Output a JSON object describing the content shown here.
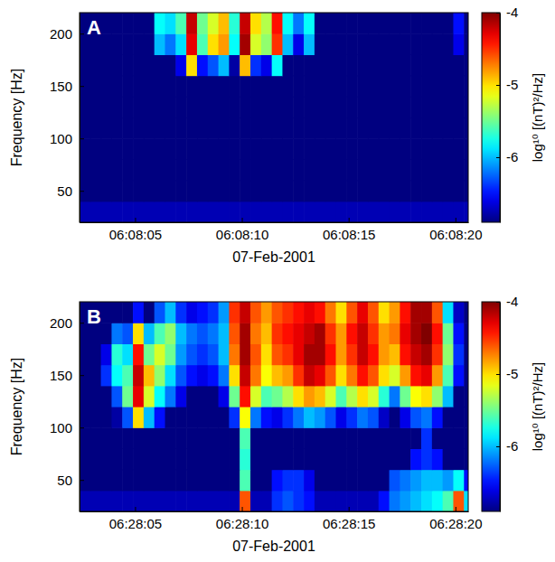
{
  "chart_data": [
    {
      "type": "heatmap",
      "title": "A",
      "x": [
        2.65,
        3.15,
        3.65,
        4.15,
        4.65,
        5.15,
        5.65,
        6.15,
        6.65,
        7.15,
        7.65,
        8.15,
        8.65,
        9.15,
        9.65,
        10.15,
        10.65,
        11.15,
        11.65,
        12.15,
        12.65,
        13.15,
        13.65,
        14.15,
        14.65,
        15.15,
        15.65,
        16.15,
        16.65,
        17.15,
        17.65,
        18.15,
        18.65,
        19.15,
        19.65,
        20.15,
        20.65
      ],
      "y": [
        30,
        50,
        70,
        90,
        110,
        130,
        150,
        170,
        190,
        210
      ],
      "z": [
        [
          -6.75,
          -6.75,
          -6.75,
          -6.75,
          -6.75,
          -6.75,
          -6.75,
          -6.75,
          -6.75,
          -6.75,
          -6.75,
          -6.75,
          -6.75,
          -6.75,
          -6.75,
          -6.75,
          -6.75,
          -6.75,
          -6.75,
          -6.75,
          -6.75,
          -6.75,
          -6.75,
          -6.75,
          -6.75,
          -6.75,
          -6.75,
          -6.75,
          -6.75,
          -6.75,
          -6.75,
          -6.75,
          -6.75,
          -6.75,
          -6.75,
          -6.75,
          -6.75
        ],
        [
          -6.9,
          -6.9,
          -6.9,
          -6.9,
          -6.9,
          -6.9,
          -6.9,
          -6.9,
          -6.9,
          -6.9,
          -6.9,
          -6.9,
          -6.9,
          -6.9,
          -6.9,
          -6.9,
          -6.9,
          -6.9,
          -6.9,
          -6.9,
          -6.9,
          -6.9,
          -6.9,
          -6.9,
          -6.9,
          -6.9,
          -6.9,
          -6.9,
          -6.9,
          -6.9,
          -6.9,
          -6.9,
          -6.9,
          -6.9,
          -6.9,
          -6.9,
          -6.9
        ],
        [
          -6.9,
          -6.9,
          -6.9,
          -6.9,
          -6.9,
          -6.9,
          -6.9,
          -6.9,
          -6.9,
          -6.9,
          -6.9,
          -6.9,
          -6.9,
          -6.9,
          -6.9,
          -6.9,
          -6.9,
          -6.9,
          -6.9,
          -6.9,
          -6.9,
          -6.9,
          -6.9,
          -6.9,
          -6.9,
          -6.9,
          -6.9,
          -6.9,
          -6.9,
          -6.9,
          -6.9,
          -6.9,
          -6.9,
          -6.9,
          -6.9,
          -6.9,
          -6.9
        ],
        [
          -6.9,
          -6.9,
          -6.9,
          -6.9,
          -6.9,
          -6.9,
          -6.9,
          -6.9,
          -6.9,
          -6.9,
          -6.9,
          -6.9,
          -6.9,
          -6.9,
          -6.9,
          -6.9,
          -6.9,
          -6.9,
          -6.9,
          -6.9,
          -6.9,
          -6.9,
          -6.9,
          -6.9,
          -6.9,
          -6.9,
          -6.9,
          -6.9,
          -6.9,
          -6.9,
          -6.9,
          -6.9,
          -6.9,
          -6.9,
          -6.9,
          -6.9,
          -6.9
        ],
        [
          -6.9,
          -6.9,
          -6.9,
          -6.9,
          -6.9,
          -6.9,
          -6.9,
          -6.9,
          -6.9,
          -6.9,
          -6.9,
          -6.9,
          -6.9,
          -6.9,
          -6.9,
          -6.9,
          -6.9,
          -6.9,
          -6.9,
          -6.9,
          -6.9,
          -6.9,
          -6.9,
          -6.9,
          -6.9,
          -6.9,
          -6.9,
          -6.9,
          -6.9,
          -6.9,
          -6.9,
          -6.9,
          -6.9,
          -6.9,
          -6.9,
          -6.9,
          -6.9
        ],
        [
          -6.9,
          -6.9,
          -6.9,
          -6.9,
          -6.9,
          -6.9,
          -6.9,
          -6.9,
          -6.9,
          -6.9,
          -6.9,
          -6.9,
          -6.9,
          -6.9,
          -6.9,
          -6.9,
          -6.9,
          -6.9,
          -6.9,
          -6.9,
          -6.9,
          -6.9,
          -6.9,
          -6.9,
          -6.9,
          -6.9,
          -6.9,
          -6.9,
          -6.9,
          -6.9,
          -6.9,
          -6.9,
          -6.9,
          -6.9,
          -6.9,
          -6.9,
          -6.9
        ],
        [
          -6.9,
          -6.9,
          -6.9,
          -6.9,
          -6.9,
          -6.9,
          -6.9,
          -6.9,
          -6.9,
          -6.9,
          -6.9,
          -6.9,
          -6.9,
          -6.9,
          -6.9,
          -6.9,
          -6.9,
          -6.9,
          -6.9,
          -6.9,
          -6.9,
          -6.9,
          -6.9,
          -6.9,
          -6.9,
          -6.9,
          -6.9,
          -6.9,
          -6.9,
          -6.9,
          -6.9,
          -6.9,
          -6.9,
          -6.9,
          -6.9,
          -6.9,
          -6.9
        ],
        [
          -6.9,
          -6.9,
          -6.9,
          -6.9,
          -6.9,
          -6.9,
          -6.9,
          -6.9,
          -6.9,
          -6.6,
          -5.0,
          -6.5,
          -6.3,
          -6.0,
          -6.8,
          -4.9,
          -6.4,
          -6.6,
          -5.8,
          -6.9,
          -6.9,
          -6.9,
          -6.9,
          -6.9,
          -6.9,
          -6.9,
          -6.9,
          -6.9,
          -6.9,
          -6.9,
          -6.9,
          -6.9,
          -6.9,
          -6.9,
          -6.9,
          -6.9,
          -6.9
        ],
        [
          -6.9,
          -6.9,
          -6.9,
          -6.9,
          -6.9,
          -6.9,
          -6.9,
          -6.0,
          -6.2,
          -5.9,
          -4.3,
          -5.6,
          -5.0,
          -4.8,
          -5.8,
          -4.1,
          -5.2,
          -5.4,
          -4.5,
          -6.0,
          -6.6,
          -6.0,
          -6.9,
          -6.9,
          -6.9,
          -6.9,
          -6.9,
          -6.9,
          -6.9,
          -6.9,
          -6.9,
          -6.9,
          -6.9,
          -6.9,
          -6.9,
          -6.6,
          -6.9
        ],
        [
          -6.9,
          -6.9,
          -6.9,
          -6.9,
          -6.9,
          -6.9,
          -6.9,
          -5.8,
          -5.9,
          -5.6,
          -4.2,
          -5.5,
          -5.2,
          -4.9,
          -5.7,
          -4.2,
          -5.0,
          -5.3,
          -4.4,
          -5.8,
          -6.2,
          -5.8,
          -6.9,
          -6.9,
          -6.9,
          -6.9,
          -6.9,
          -6.9,
          -6.9,
          -6.9,
          -6.9,
          -6.9,
          -6.9,
          -6.9,
          -6.9,
          -6.5,
          -6.9
        ]
      ],
      "xlim": [
        2.4,
        20.6
      ],
      "xticks": [
        {
          "value": 5,
          "label": "06:08:05"
        },
        {
          "value": 10,
          "label": "06:08:10"
        },
        {
          "value": 15,
          "label": "06:08:15"
        },
        {
          "value": 20,
          "label": "06:08:20"
        }
      ],
      "xlabel": "07-Feb-2001",
      "ylabel": "Frequency [Hz]",
      "ylim": [
        20,
        220
      ],
      "yticks": [
        50,
        100,
        150,
        200
      ],
      "colorbar": {
        "label": "log¹⁰ [(nT)²/Hz]",
        "range": [
          -6.9,
          -4
        ],
        "ticks": [
          -4,
          -5,
          -6
        ]
      }
    },
    {
      "type": "heatmap",
      "title": "B",
      "x": [
        2.65,
        3.15,
        3.65,
        4.15,
        4.65,
        5.15,
        5.65,
        6.15,
        6.65,
        7.15,
        7.65,
        8.15,
        8.65,
        9.15,
        9.65,
        10.15,
        10.65,
        11.15,
        11.65,
        12.15,
        12.65,
        13.15,
        13.65,
        14.15,
        14.65,
        15.15,
        15.65,
        16.15,
        16.65,
        17.15,
        17.65,
        18.15,
        18.65,
        19.15,
        19.65,
        20.15,
        20.65
      ],
      "y": [
        30,
        50,
        70,
        90,
        110,
        130,
        150,
        170,
        190,
        210
      ],
      "z": [
        [
          -6.75,
          -6.75,
          -6.75,
          -6.75,
          -6.75,
          -6.75,
          -6.75,
          -6.75,
          -6.75,
          -6.75,
          -6.75,
          -6.75,
          -6.75,
          -6.75,
          -6.75,
          -4.6,
          -6.75,
          -6.75,
          -6.4,
          -6.3,
          -6.4,
          -6.5,
          -6.75,
          -6.75,
          -6.75,
          -6.75,
          -6.75,
          -6.75,
          -6.5,
          -6.2,
          -6.1,
          -6.0,
          -5.9,
          -5.8,
          -5.6,
          -4.6,
          -5.9
        ],
        [
          -6.9,
          -6.9,
          -6.9,
          -6.9,
          -6.9,
          -6.9,
          -6.9,
          -6.9,
          -6.9,
          -6.9,
          -6.9,
          -6.9,
          -6.9,
          -6.9,
          -6.9,
          -5.6,
          -6.9,
          -6.9,
          -6.5,
          -6.4,
          -6.4,
          -6.6,
          -6.9,
          -6.9,
          -6.9,
          -6.9,
          -6.9,
          -6.9,
          -6.9,
          -6.3,
          -6.2,
          -6.1,
          -6.0,
          -6.0,
          -6.1,
          -5.8,
          -6.5
        ],
        [
          -6.9,
          -6.9,
          -6.9,
          -6.9,
          -6.9,
          -6.9,
          -6.9,
          -6.9,
          -6.9,
          -6.9,
          -6.9,
          -6.9,
          -6.9,
          -6.9,
          -6.9,
          -5.7,
          -6.9,
          -6.9,
          -6.9,
          -6.9,
          -6.9,
          -6.9,
          -6.9,
          -6.9,
          -6.9,
          -6.9,
          -6.9,
          -6.9,
          -6.9,
          -6.9,
          -6.9,
          -6.5,
          -6.4,
          -6.5,
          -6.9,
          -6.9,
          -6.9
        ],
        [
          -6.9,
          -6.9,
          -6.9,
          -6.9,
          -6.9,
          -6.9,
          -6.9,
          -6.9,
          -6.9,
          -6.9,
          -6.9,
          -6.9,
          -6.9,
          -6.9,
          -6.9,
          -5.6,
          -6.9,
          -6.9,
          -6.9,
          -6.9,
          -6.9,
          -6.9,
          -6.9,
          -6.9,
          -6.9,
          -6.9,
          -6.9,
          -6.9,
          -6.9,
          -6.9,
          -6.9,
          -6.9,
          -6.4,
          -6.9,
          -6.9,
          -6.9,
          -6.9
        ],
        [
          -6.9,
          -6.9,
          -6.9,
          -6.8,
          -6.3,
          -5.0,
          -6.0,
          -6.5,
          -6.9,
          -6.9,
          -6.9,
          -6.9,
          -6.9,
          -6.9,
          -6.4,
          -5.1,
          -6.2,
          -6.5,
          -6.6,
          -6.4,
          -6.2,
          -6.0,
          -6.1,
          -6.3,
          -6.6,
          -6.4,
          -6.2,
          -6.3,
          -6.7,
          -6.9,
          -6.6,
          -6.3,
          -6.2,
          -6.5,
          -6.9,
          -6.9,
          -6.9
        ],
        [
          -6.9,
          -6.9,
          -6.9,
          -6.3,
          -5.5,
          -4.3,
          -5.2,
          -5.8,
          -6.2,
          -6.6,
          -6.9,
          -6.9,
          -6.9,
          -6.6,
          -5.5,
          -4.4,
          -5.2,
          -5.6,
          -5.5,
          -5.3,
          -5.0,
          -4.8,
          -4.9,
          -5.2,
          -5.6,
          -5.3,
          -5.0,
          -5.2,
          -5.7,
          -6.2,
          -5.5,
          -5.1,
          -5.0,
          -5.4,
          -6.0,
          -6.9,
          -6.9
        ],
        [
          -6.9,
          -6.9,
          -6.4,
          -5.8,
          -5.6,
          -4.2,
          -4.9,
          -5.4,
          -5.9,
          -6.3,
          -6.5,
          -6.6,
          -6.5,
          -6.2,
          -5.0,
          -4.2,
          -4.7,
          -5.1,
          -4.9,
          -4.8,
          -4.5,
          -4.2,
          -4.3,
          -4.6,
          -5.0,
          -4.7,
          -4.4,
          -4.6,
          -5.0,
          -5.2,
          -4.8,
          -4.4,
          -4.3,
          -4.8,
          -5.6,
          -6.5,
          -6.9
        ],
        [
          -6.9,
          -6.9,
          -6.6,
          -5.7,
          -5.9,
          -4.4,
          -5.5,
          -5.2,
          -5.5,
          -6.1,
          -6.3,
          -6.4,
          -6.3,
          -6.0,
          -4.7,
          -4.1,
          -4.6,
          -5.0,
          -4.6,
          -4.5,
          -4.3,
          -4.1,
          -4.1,
          -4.4,
          -4.8,
          -4.5,
          -4.2,
          -4.4,
          -4.8,
          -4.9,
          -4.4,
          -4.2,
          -4.1,
          -4.5,
          -5.4,
          -6.4,
          -6.9
        ],
        [
          -6.9,
          -6.9,
          -6.9,
          -6.2,
          -6.3,
          -5.0,
          -6.0,
          -5.6,
          -5.4,
          -6.0,
          -6.2,
          -6.3,
          -6.2,
          -6.0,
          -4.6,
          -4.1,
          -4.7,
          -4.9,
          -4.5,
          -4.4,
          -4.3,
          -4.2,
          -4.1,
          -4.5,
          -4.8,
          -4.4,
          -4.2,
          -4.5,
          -4.8,
          -4.7,
          -4.3,
          -4.1,
          -4.0,
          -4.4,
          -5.5,
          -6.5,
          -6.9
        ],
        [
          -6.9,
          -6.9,
          -6.9,
          -6.9,
          -6.9,
          -6.5,
          -6.9,
          -6.3,
          -6.0,
          -6.4,
          -6.6,
          -6.5,
          -6.4,
          -6.1,
          -4.5,
          -4.2,
          -4.6,
          -4.8,
          -4.6,
          -4.5,
          -4.4,
          -4.3,
          -4.4,
          -4.7,
          -5.0,
          -4.6,
          -4.3,
          -4.6,
          -5.0,
          -4.8,
          -4.4,
          -4.1,
          -4.1,
          -4.6,
          -5.9,
          -6.7,
          -6.9
        ]
      ],
      "xlim": [
        2.4,
        20.6
      ],
      "xticks": [
        {
          "value": 5,
          "label": "06:28:05"
        },
        {
          "value": 10,
          "label": "06:28:10"
        },
        {
          "value": 15,
          "label": "06:28:15"
        },
        {
          "value": 20,
          "label": "06:28:20"
        }
      ],
      "xlabel": "07-Feb-2001",
      "ylabel": "Frequency [Hz]",
      "ylim": [
        20,
        220
      ],
      "yticks": [
        50,
        100,
        150,
        200
      ],
      "colorbar": {
        "label": "log¹⁰ [(nT)²/Hz]",
        "range": [
          -6.9,
          -4
        ],
        "ticks": [
          -4,
          -5,
          -6
        ]
      }
    }
  ]
}
